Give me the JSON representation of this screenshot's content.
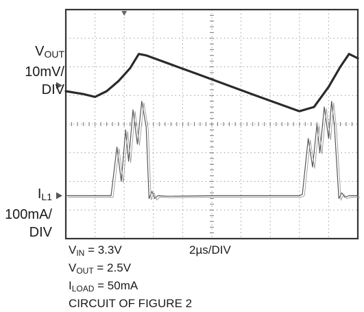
{
  "chart_data": {
    "type": "line",
    "title": "",
    "grid": true,
    "x_divisions": 10,
    "y_divisions": 8,
    "time_per_division": "2µs/DIV",
    "traces": [
      {
        "label": {
          "main": "V",
          "sub": "OUT",
          "scale": "10mV/",
          "unit": "DIV"
        },
        "x_div": [
          0,
          0.6,
          1.0,
          1.4,
          1.8,
          2.2,
          2.5,
          2.75,
          4.5,
          6.5,
          8.0,
          8.5,
          9.0,
          9.4,
          9.7,
          10.0
        ],
        "y_div": [
          5.15,
          5.05,
          4.95,
          5.15,
          5.5,
          5.95,
          6.45,
          6.4,
          5.75,
          5.0,
          4.45,
          4.6,
          5.3,
          6.0,
          6.45,
          6.3
        ]
      },
      {
        "label": {
          "main": "I",
          "sub": "L1",
          "scale": "100mA/",
          "unit": "DIV"
        },
        "x_div": [
          0,
          1.55,
          1.75,
          1.9,
          2.05,
          2.15,
          2.3,
          2.45,
          2.6,
          2.75,
          2.85,
          2.95,
          3.05,
          3.15,
          3.5,
          5.0,
          7.0,
          8.0,
          8.1,
          8.3,
          8.45,
          8.6,
          8.7,
          8.85,
          9.0,
          9.1,
          9.2,
          9.35,
          9.45,
          9.55,
          9.7,
          10.0
        ],
        "y_div": [
          1.5,
          1.5,
          3.2,
          2.0,
          3.8,
          2.7,
          4.5,
          3.3,
          4.8,
          3.9,
          1.4,
          1.65,
          1.4,
          1.5,
          1.48,
          1.5,
          1.5,
          1.5,
          1.55,
          3.5,
          2.5,
          4.0,
          3.0,
          4.6,
          3.5,
          4.8,
          3.9,
          1.4,
          1.6,
          1.45,
          1.5,
          1.5
        ]
      }
    ],
    "conditions": [
      {
        "main": "V",
        "sub": "IN",
        "rest": " = 3.3V"
      },
      {
        "main": "V",
        "sub": "OUT",
        "rest": " = 2.5V"
      },
      {
        "main": "I",
        "sub": "LOAD",
        "rest": " = 50mA"
      },
      {
        "main": "",
        "sub": "",
        "rest": "CIRCUIT OF FIGURE 2"
      }
    ],
    "channel_markers": [
      "1",
      "2"
    ]
  }
}
